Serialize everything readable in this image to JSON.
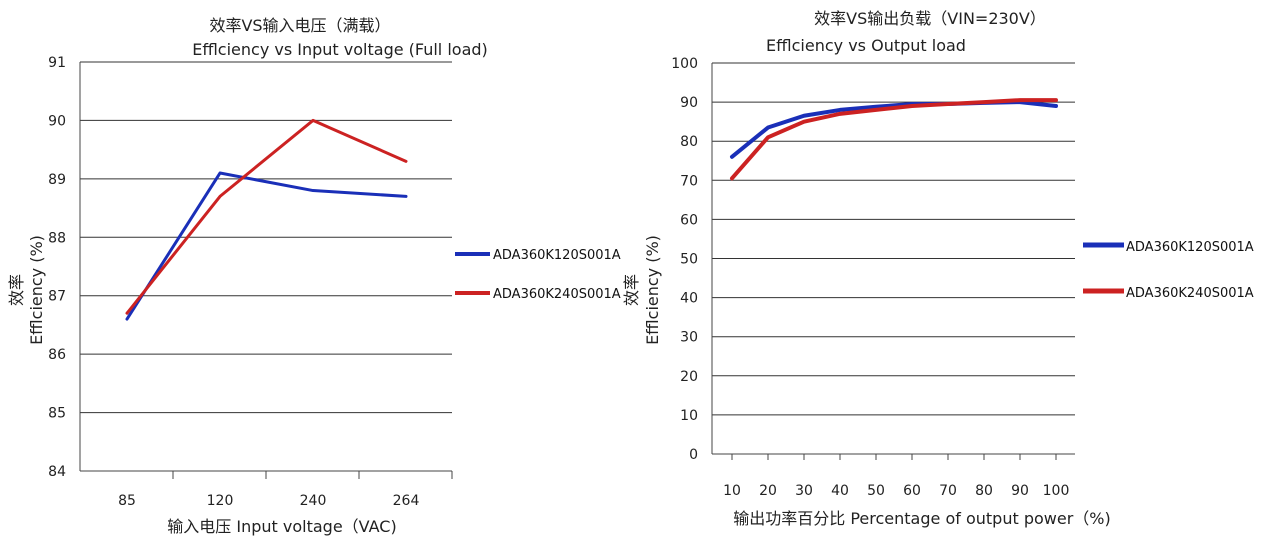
{
  "chart_data": [
    {
      "type": "line",
      "title": "效率VS输入电压（满载）",
      "subtitle": "Efflciency  vs  Input voltage (Full load)",
      "xlabel": "输入电压  Input voltage（VAC)",
      "ylabel": "效率",
      "ylabel2": "Efflciency  (%)",
      "categories": [
        "85",
        "120",
        "240",
        "264"
      ],
      "ylim": [
        84,
        91
      ],
      "yticks": [
        84,
        85,
        86,
        87,
        88,
        89,
        90,
        91
      ],
      "grid": true,
      "legend_position": "right",
      "series": [
        {
          "name": "ADA360K120S001A",
          "color": "#1a2fb8",
          "values": [
            86.6,
            89.1,
            88.8,
            88.7
          ]
        },
        {
          "name": "ADA360K240S001A",
          "color": "#cc2222",
          "values": [
            86.7,
            88.7,
            90.0,
            89.3
          ]
        }
      ]
    },
    {
      "type": "line",
      "title": "效率VS输出负载（VIN=230V）",
      "subtitle": "Efflciency vs Output load",
      "xlabel": "输出功率百分比 Percentage of output power（%)",
      "ylabel": "效率",
      "ylabel2": "Efflciency  (%)",
      "categories": [
        "10",
        "20",
        "30",
        "40",
        "50",
        "60",
        "70",
        "80",
        "90",
        "100"
      ],
      "ylim": [
        0,
        100
      ],
      "yticks": [
        0,
        10,
        20,
        30,
        40,
        50,
        60,
        70,
        80,
        90,
        100
      ],
      "grid": true,
      "legend_position": "right",
      "series": [
        {
          "name": "ADA360K120S001A",
          "color": "#1a2fb8",
          "values": [
            76,
            83.5,
            86.5,
            88,
            88.8,
            89.5,
            89.5,
            89.8,
            90,
            89
          ]
        },
        {
          "name": "ADA360K240S001A",
          "color": "#cc2222",
          "values": [
            70.5,
            81,
            85,
            87,
            88,
            89,
            89.5,
            90,
            90.5,
            90.5
          ]
        }
      ]
    }
  ]
}
